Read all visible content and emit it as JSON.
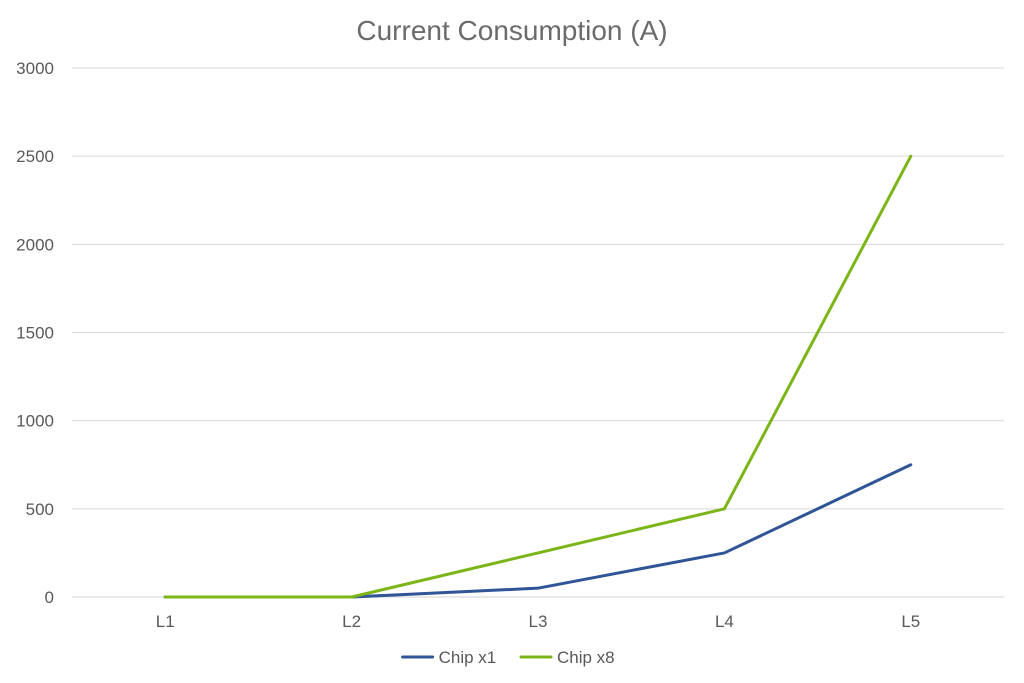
{
  "chart_data": {
    "type": "line",
    "title": "Current Consumption (A)",
    "xlabel": "",
    "ylabel": "",
    "categories": [
      "L1",
      "L2",
      "L3",
      "L4",
      "L5"
    ],
    "ylim": [
      0,
      3000
    ],
    "yticks": [
      0,
      500,
      1000,
      1500,
      2000,
      2500,
      3000
    ],
    "grid": true,
    "legend_position": "bottom",
    "series": [
      {
        "name": "Chip x1",
        "color": "#2f5597",
        "values": [
          0,
          0,
          50,
          250,
          750
        ]
      },
      {
        "name": "Chip x8",
        "color": "#7cb518",
        "values": [
          0,
          0,
          250,
          500,
          2500
        ]
      }
    ]
  }
}
